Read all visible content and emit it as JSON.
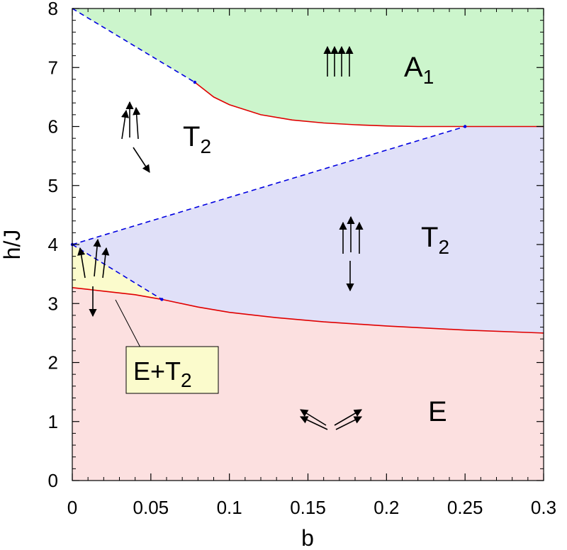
{
  "chart_data": {
    "type": "area",
    "xlabel": "b",
    "ylabel": "h/J",
    "xlim": [
      0,
      0.3
    ],
    "ylim": [
      0,
      8
    ],
    "x_ticks": [
      "0",
      "0.05",
      "0.1",
      "0.15",
      "0.2",
      "0.25",
      "0.3"
    ],
    "y_ticks": [
      "0",
      "1",
      "2",
      "3",
      "4",
      "5",
      "6",
      "7",
      "8"
    ],
    "colors": {
      "A1": "#ccf5cc",
      "T2_lower": "#e0e0f8",
      "E": "#fce0e0",
      "mixed": "#fbfbcc",
      "solid_boundary": "#e00000",
      "dashed_boundary": "#0000e0"
    },
    "regions": [
      {
        "name": "A1",
        "label_main": "A",
        "label_sub": "1"
      },
      {
        "name": "T2_upper",
        "label_main": "T",
        "label_sub": "2"
      },
      {
        "name": "T2_lower",
        "label_main": "T",
        "label_sub": "2"
      },
      {
        "name": "E",
        "label_main": "E",
        "label_sub": ""
      },
      {
        "name": "mixed",
        "label_main": "E+T",
        "label_sub": "2"
      }
    ],
    "series": [
      {
        "style": "solid",
        "color": "red",
        "x": [
          0.078,
          0.09,
          0.1,
          0.12,
          0.14,
          0.16,
          0.18,
          0.2,
          0.22,
          0.24,
          0.25,
          0.3
        ],
        "y": [
          6.75,
          6.5,
          6.37,
          6.2,
          6.11,
          6.06,
          6.03,
          6.01,
          6.0,
          6.0,
          6.0,
          6.0
        ]
      },
      {
        "style": "solid",
        "color": "red",
        "x": [
          0.0,
          0.02,
          0.04,
          0.057,
          0.08,
          0.1,
          0.13,
          0.16,
          0.2,
          0.25,
          0.3
        ],
        "y": [
          3.27,
          3.21,
          3.15,
          3.07,
          2.94,
          2.85,
          2.76,
          2.69,
          2.62,
          2.55,
          2.5
        ]
      },
      {
        "style": "dashed",
        "color": "blue",
        "x": [
          0.0,
          0.078
        ],
        "y": [
          8.0,
          6.75
        ]
      },
      {
        "style": "dashed",
        "color": "blue",
        "x": [
          0.0,
          0.25
        ],
        "y": [
          4.0,
          6.0
        ]
      },
      {
        "style": "dashed",
        "color": "blue",
        "x": [
          0.0,
          0.057
        ],
        "y": [
          4.0,
          3.07
        ]
      }
    ],
    "points": [
      {
        "x": 0.078,
        "y": 6.75
      },
      {
        "x": 0.25,
        "y": 6.0
      },
      {
        "x": 0.057,
        "y": 3.07
      },
      {
        "x": 0.0,
        "y": 4.0
      }
    ],
    "spin_icons": [
      {
        "region": "A1",
        "arrows": [
          "up",
          "up",
          "up",
          "up"
        ]
      },
      {
        "region": "T2_upper",
        "arrows": [
          "up",
          "up",
          "up",
          "down"
        ]
      },
      {
        "region": "T2_lower",
        "arrows": [
          "up",
          "up",
          "up",
          "down"
        ]
      },
      {
        "region": "mixed",
        "arrows": [
          "up",
          "up",
          "up",
          "down"
        ]
      },
      {
        "region": "E",
        "arrows": [
          "up-left",
          "up-left",
          "up-right",
          "up-right"
        ]
      }
    ]
  }
}
